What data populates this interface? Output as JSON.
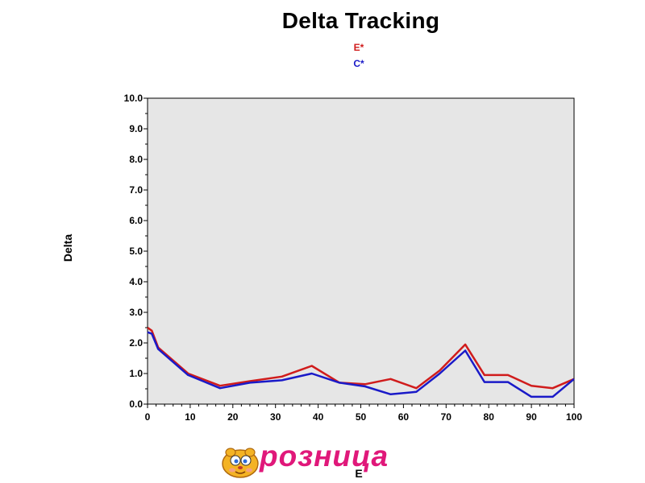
{
  "chart_data": {
    "type": "line",
    "title": "Delta Tracking",
    "xlabel": "E",
    "ylabel": "Delta",
    "xlim": [
      0,
      100
    ],
    "ylim": [
      0,
      10
    ],
    "x_ticks": [
      "0",
      "10",
      "20",
      "30",
      "40",
      "50",
      "60",
      "70",
      "80",
      "90",
      "100"
    ],
    "y_ticks": [
      "0.0",
      "1.0",
      "2.0",
      "3.0",
      "4.0",
      "5.0",
      "6.0",
      "7.0",
      "8.0",
      "9.0",
      "10.0"
    ],
    "legend_position": "top-center",
    "plot_background": "#e6e6e6",
    "series": [
      {
        "name": "E*",
        "color": "#d01c1c",
        "points": [
          [
            0,
            2.5
          ],
          [
            1,
            2.4
          ],
          [
            2.5,
            1.85
          ],
          [
            9.5,
            1.0
          ],
          [
            17,
            0.6
          ],
          [
            24,
            0.75
          ],
          [
            31.5,
            0.9
          ],
          [
            38.5,
            1.25
          ],
          [
            45,
            0.7
          ],
          [
            51,
            0.65
          ],
          [
            57,
            0.82
          ],
          [
            63,
            0.52
          ],
          [
            68.5,
            1.1
          ],
          [
            74.5,
            1.95
          ],
          [
            79,
            0.95
          ],
          [
            84.5,
            0.95
          ],
          [
            90,
            0.6
          ],
          [
            95,
            0.52
          ],
          [
            100,
            0.82
          ]
        ]
      },
      {
        "name": "C*",
        "color": "#1a1ac8",
        "points": [
          [
            0,
            2.35
          ],
          [
            1,
            2.3
          ],
          [
            2.5,
            1.8
          ],
          [
            9.5,
            0.95
          ],
          [
            17,
            0.52
          ],
          [
            24,
            0.7
          ],
          [
            31.5,
            0.78
          ],
          [
            38.5,
            1.0
          ],
          [
            45,
            0.7
          ],
          [
            51,
            0.58
          ],
          [
            57,
            0.32
          ],
          [
            63,
            0.4
          ],
          [
            68.5,
            1.0
          ],
          [
            74.5,
            1.75
          ],
          [
            79,
            0.72
          ],
          [
            84.5,
            0.72
          ],
          [
            90,
            0.24
          ],
          [
            95,
            0.24
          ],
          [
            100,
            0.82
          ]
        ]
      }
    ]
  },
  "logo": {
    "text": "розница",
    "color": "#e0187a"
  }
}
